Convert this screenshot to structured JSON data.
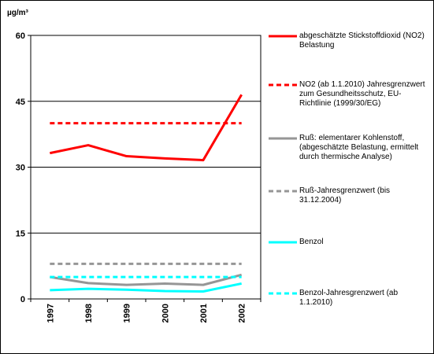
{
  "chart_data": {
    "type": "line",
    "unit": "µg/m³",
    "categories": [
      "1997",
      "1998",
      "1999",
      "2000",
      "2001",
      "2002"
    ],
    "ylim": [
      0,
      60
    ],
    "yticks": [
      "0",
      "15",
      "30",
      "45",
      "60"
    ],
    "ytick_values": [
      0,
      15,
      30,
      45,
      60
    ],
    "grid": "horizontal",
    "legend_position": "right",
    "series": [
      {
        "name": "abgeschätzte Stickstoffdioxid (NO2) Belastung",
        "values": [
          33.2,
          35.0,
          32.5,
          32.0,
          31.6,
          46.5
        ],
        "color": "#ff0000",
        "dash": "solid"
      },
      {
        "name": "NO2 (ab 1.1.2010) Jahresgrenzwert zum Gesundheitsschutz, EU-Richtlinie (1999/30/EG)",
        "values": [
          40,
          40,
          40,
          40,
          40,
          40
        ],
        "color": "#ff0000",
        "dash": "dashed"
      },
      {
        "name": "Ruß: elementarer Kohlenstoff, (abgeschätzte Belastung, ermittelt durch thermische Analyse)",
        "values": [
          5.0,
          3.6,
          3.2,
          3.5,
          3.2,
          5.5
        ],
        "color": "#969696",
        "dash": "solid"
      },
      {
        "name": "Ruß-Jahresgrenzwert (bis 31.12.2004)",
        "values": [
          8,
          8,
          8,
          8,
          8,
          8
        ],
        "color": "#969696",
        "dash": "dashed"
      },
      {
        "name": "Benzol",
        "values": [
          2.0,
          2.3,
          2.1,
          1.8,
          1.7,
          3.5
        ],
        "color": "#00ffff",
        "dash": "solid"
      },
      {
        "name": "Benzol-Jahresgrenzwert (ab 1.1.2010)",
        "values": [
          5,
          5,
          5,
          5,
          5,
          5
        ],
        "color": "#00ffff",
        "dash": "dashed"
      }
    ]
  }
}
